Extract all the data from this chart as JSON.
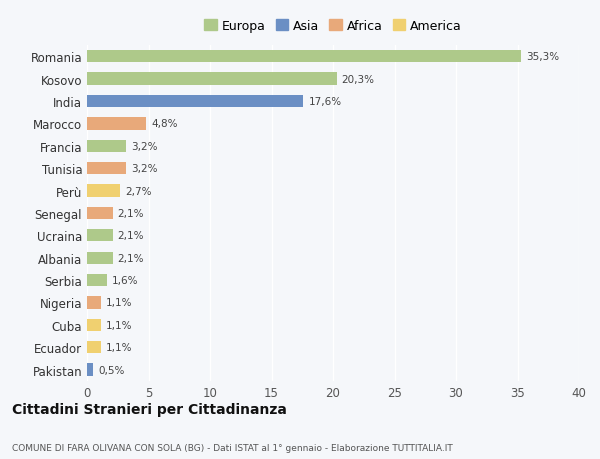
{
  "countries": [
    "Romania",
    "Kosovo",
    "India",
    "Marocco",
    "Francia",
    "Tunisia",
    "Perù",
    "Senegal",
    "Ucraina",
    "Albania",
    "Serbia",
    "Nigeria",
    "Cuba",
    "Ecuador",
    "Pakistan"
  ],
  "values": [
    35.3,
    20.3,
    17.6,
    4.8,
    3.2,
    3.2,
    2.7,
    2.1,
    2.1,
    2.1,
    1.6,
    1.1,
    1.1,
    1.1,
    0.5
  ],
  "labels": [
    "35,3%",
    "20,3%",
    "17,6%",
    "4,8%",
    "3,2%",
    "3,2%",
    "2,7%",
    "2,1%",
    "2,1%",
    "2,1%",
    "1,6%",
    "1,1%",
    "1,1%",
    "1,1%",
    "0,5%"
  ],
  "colors": [
    "#aec98a",
    "#aec98a",
    "#6b8fc4",
    "#e8a97a",
    "#aec98a",
    "#e8a97a",
    "#f0d070",
    "#e8a97a",
    "#aec98a",
    "#aec98a",
    "#aec98a",
    "#e8a97a",
    "#f0d070",
    "#f0d070",
    "#6b8fc4"
  ],
  "legend_labels": [
    "Europa",
    "Asia",
    "Africa",
    "America"
  ],
  "legend_colors": [
    "#aec98a",
    "#6b8fc4",
    "#e8a97a",
    "#f0d070"
  ],
  "title": "Cittadini Stranieri per Cittadinanza",
  "subtitle": "COMUNE DI FARA OLIVANA CON SOLA (BG) - Dati ISTAT al 1° gennaio - Elaborazione TUTTITALIA.IT",
  "xlim": [
    0,
    40
  ],
  "xticks": [
    0,
    5,
    10,
    15,
    20,
    25,
    30,
    35,
    40
  ],
  "background_color": "#f5f7fa",
  "bar_height": 0.55
}
